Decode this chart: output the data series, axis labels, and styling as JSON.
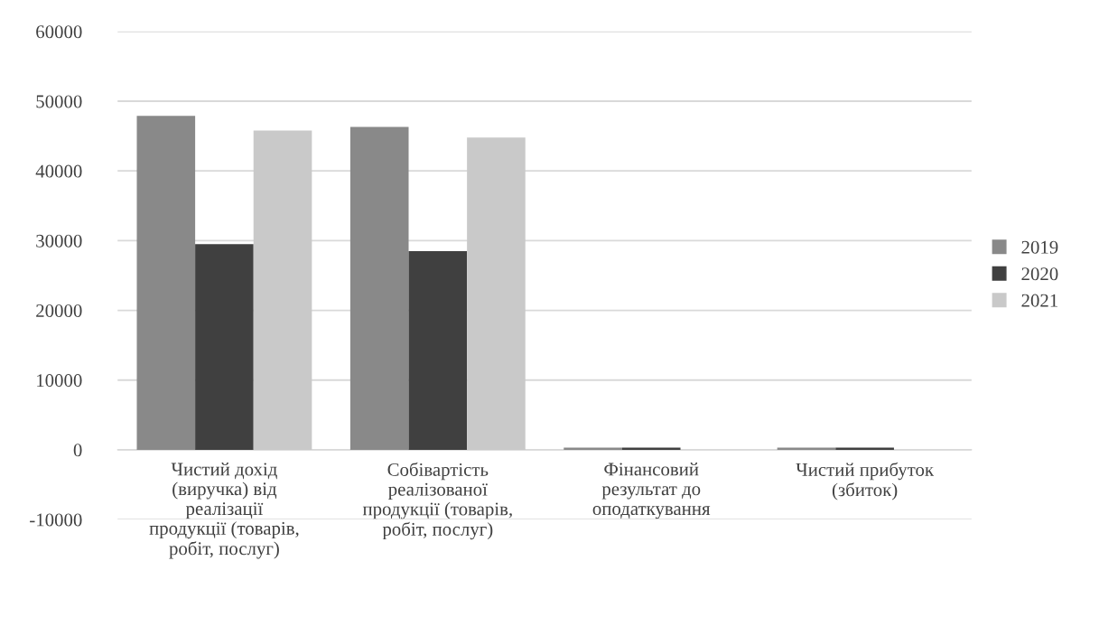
{
  "chart_data": {
    "type": "bar",
    "categories": [
      "Чистий дохід\n(виручка) від\nреалізації\nпродукції (товарів,\nробіт, послуг)",
      "Собівартість\nреалізованої\nпродукції (товарів,\nробіт, послуг)",
      "Фінансовий\nрезультат до\nоподаткування",
      "Чистий прибуток\n(збиток)"
    ],
    "series": [
      {
        "name": "2019",
        "color": "#898989",
        "values": [
          47900,
          46300,
          300,
          300
        ]
      },
      {
        "name": "2020",
        "color": "#404040",
        "values": [
          29500,
          28500,
          300,
          300
        ]
      },
      {
        "name": "2021",
        "color": "#c9c9c9",
        "values": [
          45800,
          44800,
          0,
          0
        ]
      }
    ],
    "ylim": [
      -10000,
      60000
    ],
    "yticks": [
      -10000,
      0,
      10000,
      20000,
      30000,
      40000,
      50000,
      60000
    ],
    "grid": "y",
    "legend": "right"
  }
}
